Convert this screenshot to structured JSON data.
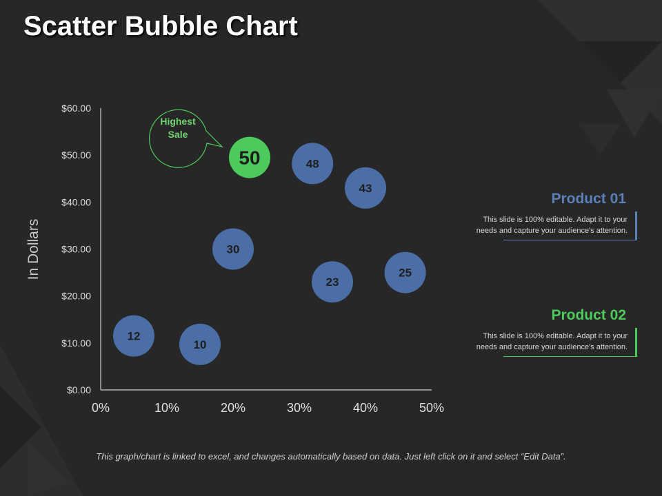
{
  "slide": {
    "title": "Scatter Bubble Chart",
    "footer_note": "This graph/chart is linked to excel, and changes automatically based on data. Just left click on it and select “Edit Data”."
  },
  "colors": {
    "background": "#272727",
    "bubble": "#4a6ea5",
    "highlight": "#4dca5c",
    "product01": "#5b7fb9",
    "product02": "#4dca5c"
  },
  "chart_data": {
    "type": "scatter",
    "title": "",
    "xlabel": "",
    "ylabel": "In Dollars",
    "xlim": [
      0,
      50
    ],
    "ylim": [
      0,
      60
    ],
    "x_ticks": [
      0,
      10,
      20,
      30,
      40,
      50
    ],
    "x_tick_labels": [
      "0%",
      "10%",
      "20%",
      "30%",
      "40%",
      "50%"
    ],
    "y_ticks": [
      0,
      10,
      20,
      30,
      40,
      50,
      60
    ],
    "y_tick_labels": [
      "$0.00",
      "$10.00",
      "$20.00",
      "$30.00",
      "$40.00",
      "$50.00",
      "$60.00"
    ],
    "grid": false,
    "points": [
      {
        "x": 5,
        "y": 11.5,
        "label": "12",
        "highlight": false
      },
      {
        "x": 15,
        "y": 9.7,
        "label": "10",
        "highlight": false
      },
      {
        "x": 20,
        "y": 30,
        "label": "30",
        "highlight": false
      },
      {
        "x": 22.5,
        "y": 49.5,
        "label": "50",
        "highlight": true
      },
      {
        "x": 32,
        "y": 48.2,
        "label": "48",
        "highlight": false
      },
      {
        "x": 35,
        "y": 23,
        "label": "23",
        "highlight": false
      },
      {
        "x": 40,
        "y": 43,
        "label": "43",
        "highlight": false
      },
      {
        "x": 46,
        "y": 25,
        "label": "25",
        "highlight": false
      }
    ],
    "annotation": {
      "text_line1": "Highest",
      "text_line2": "Sale"
    }
  },
  "products": [
    {
      "title": "Product 01",
      "desc_line1": "This slide is 100% editable. Adapt it to your",
      "desc_line2": "needs and capture your audience's attention."
    },
    {
      "title": "Product 02",
      "desc_line1": "This slide is 100% editable. Adapt it to your",
      "desc_line2": "needs and capture your audience's attention."
    }
  ]
}
